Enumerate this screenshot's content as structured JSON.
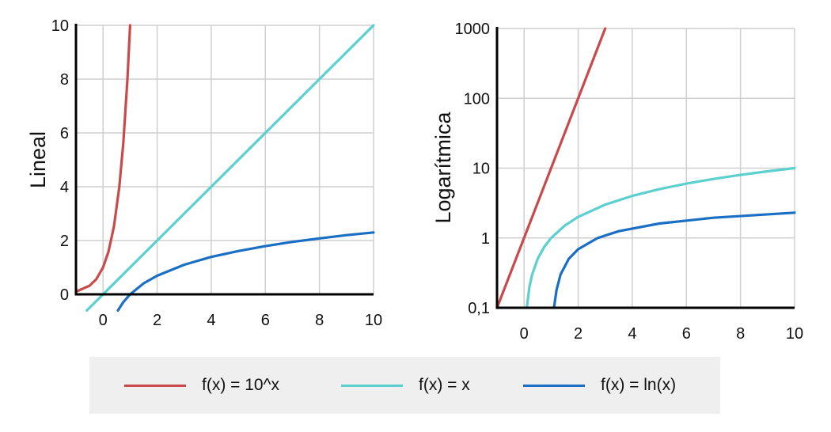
{
  "chart_data": [
    {
      "type": "line",
      "ylabel": "Lineal",
      "xlabel": "",
      "xlim": [
        -1,
        10
      ],
      "ylim": [
        0,
        10
      ],
      "yscale": "linear",
      "x_ticks": [
        "0",
        "2",
        "4",
        "6",
        "8",
        "10"
      ],
      "y_ticks": [
        "0",
        "2",
        "4",
        "6",
        "8",
        "10"
      ],
      "grid": true,
      "series": [
        {
          "name": "f(x) = 10^x",
          "color": "#c94a4a",
          "x": [
            -1,
            -0.5,
            -0.25,
            0,
            0.2,
            0.4,
            0.6,
            0.75,
            0.9,
            1.0
          ],
          "y": [
            0.1,
            0.32,
            0.56,
            1.0,
            1.58,
            2.51,
            3.98,
            5.62,
            7.94,
            10.0
          ]
        },
        {
          "name": "f(x) = x",
          "color": "#5ccfcf",
          "x": [
            -0.6,
            10
          ],
          "y": [
            -0.6,
            10
          ]
        },
        {
          "name": "f(x) = ln(x)",
          "color": "#1a6fc4",
          "x": [
            0.55,
            0.75,
            1,
            1.5,
            2,
            3,
            4,
            5,
            6,
            7,
            8,
            9,
            10
          ],
          "y": [
            -0.6,
            -0.29,
            0.0,
            0.41,
            0.69,
            1.1,
            1.39,
            1.61,
            1.79,
            1.95,
            2.08,
            2.2,
            2.3
          ]
        }
      ]
    },
    {
      "type": "line",
      "ylabel": "Logarítmica",
      "xlabel": "",
      "xlim": [
        -1,
        10
      ],
      "ylim": [
        0.1,
        1000
      ],
      "yscale": "log",
      "x_ticks": [
        "0",
        "2",
        "4",
        "6",
        "8",
        "10"
      ],
      "y_ticks": [
        "0,1",
        "1",
        "10",
        "100",
        "1000"
      ],
      "grid": true,
      "series": [
        {
          "name": "f(x) = 10^x",
          "color": "#c94a4a",
          "x": [
            -1,
            3
          ],
          "y": [
            0.1,
            1000
          ]
        },
        {
          "name": "f(x) = x",
          "color": "#5ccfcf",
          "x": [
            0.1,
            0.2,
            0.3,
            0.5,
            0.75,
            1,
            1.5,
            2,
            3,
            4,
            5,
            6,
            7,
            8,
            9,
            10
          ],
          "y": [
            0.1,
            0.2,
            0.3,
            0.5,
            0.75,
            1,
            1.5,
            2,
            3,
            4,
            5,
            6,
            7,
            8,
            9,
            10
          ]
        },
        {
          "name": "f(x) = ln(x)",
          "color": "#1a6fc4",
          "x": [
            1.105,
            1.2,
            1.35,
            1.65,
            2,
            2.72,
            3.5,
            5,
            7,
            10
          ],
          "y": [
            0.1,
            0.18,
            0.3,
            0.5,
            0.69,
            1.0,
            1.25,
            1.61,
            1.95,
            2.3
          ]
        }
      ]
    }
  ],
  "legend": [
    {
      "label": "f(x) = 10^x",
      "color": "#c94a4a"
    },
    {
      "label": "f(x) = x",
      "color": "#5ccfcf"
    },
    {
      "label": "f(x) = ln(x)",
      "color": "#1a6fc4"
    }
  ]
}
